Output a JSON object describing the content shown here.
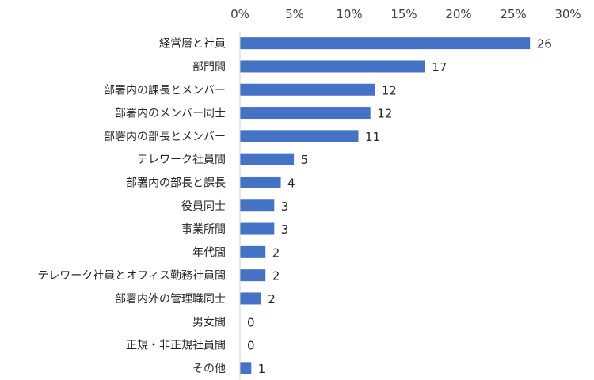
{
  "chart_data": {
    "type": "bar",
    "orientation": "horizontal",
    "title": "",
    "xlabel": "",
    "ylabel": "",
    "xlim": [
      0,
      30
    ],
    "x_ticks": [
      0,
      5,
      10,
      15,
      20,
      25,
      30
    ],
    "x_tick_labels": [
      "0%",
      "5%",
      "10%",
      "15%",
      "20%",
      "25%",
      "30%"
    ],
    "x_axis_position": "top",
    "grid": false,
    "legend": "none",
    "bar_color": "#4472C4",
    "categories": [
      "経営層と社員",
      "部門間",
      "部署内の課長とメンバー",
      "部署内のメンバー同士",
      "部署内の部長とメンバー",
      "テレワーク社員間",
      "部署内の部長と課長",
      "役員同士",
      "事業所間",
      "年代間",
      "テレワーク社員とオフィス勤務社員間",
      "部署内外の管理職同士",
      "男女間",
      "正規・非正規社員間",
      "その他"
    ],
    "values": [
      26.5,
      16.9,
      12.3,
      11.9,
      10.8,
      4.9,
      3.7,
      3.1,
      3.1,
      2.3,
      2.3,
      1.9,
      0,
      0,
      1.0
    ],
    "data_labels": [
      "26",
      "17",
      "12",
      "12",
      "11",
      "5",
      "4",
      "3",
      "3",
      "2",
      "2",
      "2",
      "0",
      "0",
      "1"
    ]
  }
}
